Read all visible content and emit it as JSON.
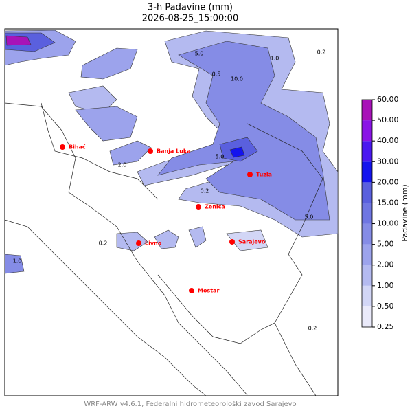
{
  "map": {
    "title": "3-h Padavine (mm)",
    "subtitle": "2026-08-25_15:00:00",
    "footer": "WRF-ARW v4.6.1, Federalni hidrometeorološki zavod Sarajevo",
    "cities": [
      {
        "name": "Bihać"
      },
      {
        "name": "Banja Luka"
      },
      {
        "name": "Tuzla"
      },
      {
        "name": "Zenica"
      },
      {
        "name": "Livno"
      },
      {
        "name": "Sarajevo"
      },
      {
        "name": "Mostar"
      }
    ],
    "contour_labels": [
      "0.2",
      "5.0",
      "10.0",
      "1.0",
      "0.5",
      "2.0",
      "5.0",
      "0.2",
      "5.0",
      "0.2",
      "1.0",
      "0.2"
    ],
    "colorbar": {
      "label": "Padavine (mm)",
      "ticks": [
        {
          "value": 0.25,
          "label": "0.25"
        },
        {
          "value": 0.5,
          "label": "0.50"
        },
        {
          "value": 1,
          "label": "1.00"
        },
        {
          "value": 2,
          "label": "2.00"
        },
        {
          "value": 5,
          "label": "5.00"
        },
        {
          "value": 10,
          "label": "10.00"
        },
        {
          "value": 15,
          "label": "15.00"
        },
        {
          "value": 20,
          "label": "20.00"
        },
        {
          "value": 30,
          "label": "30.00"
        },
        {
          "value": 40,
          "label": "40.00"
        },
        {
          "value": 50,
          "label": "50.00"
        },
        {
          "value": 60,
          "label": "60.00"
        }
      ],
      "colors": [
        "#eaeafa",
        "#d2d6f6",
        "#b4baf0",
        "#9ca3ec",
        "#858ce6",
        "#6f76e2",
        "#5a60de",
        "#1414ee",
        "#4a18f0",
        "#8a14e6",
        "#a812b8"
      ]
    }
  }
}
